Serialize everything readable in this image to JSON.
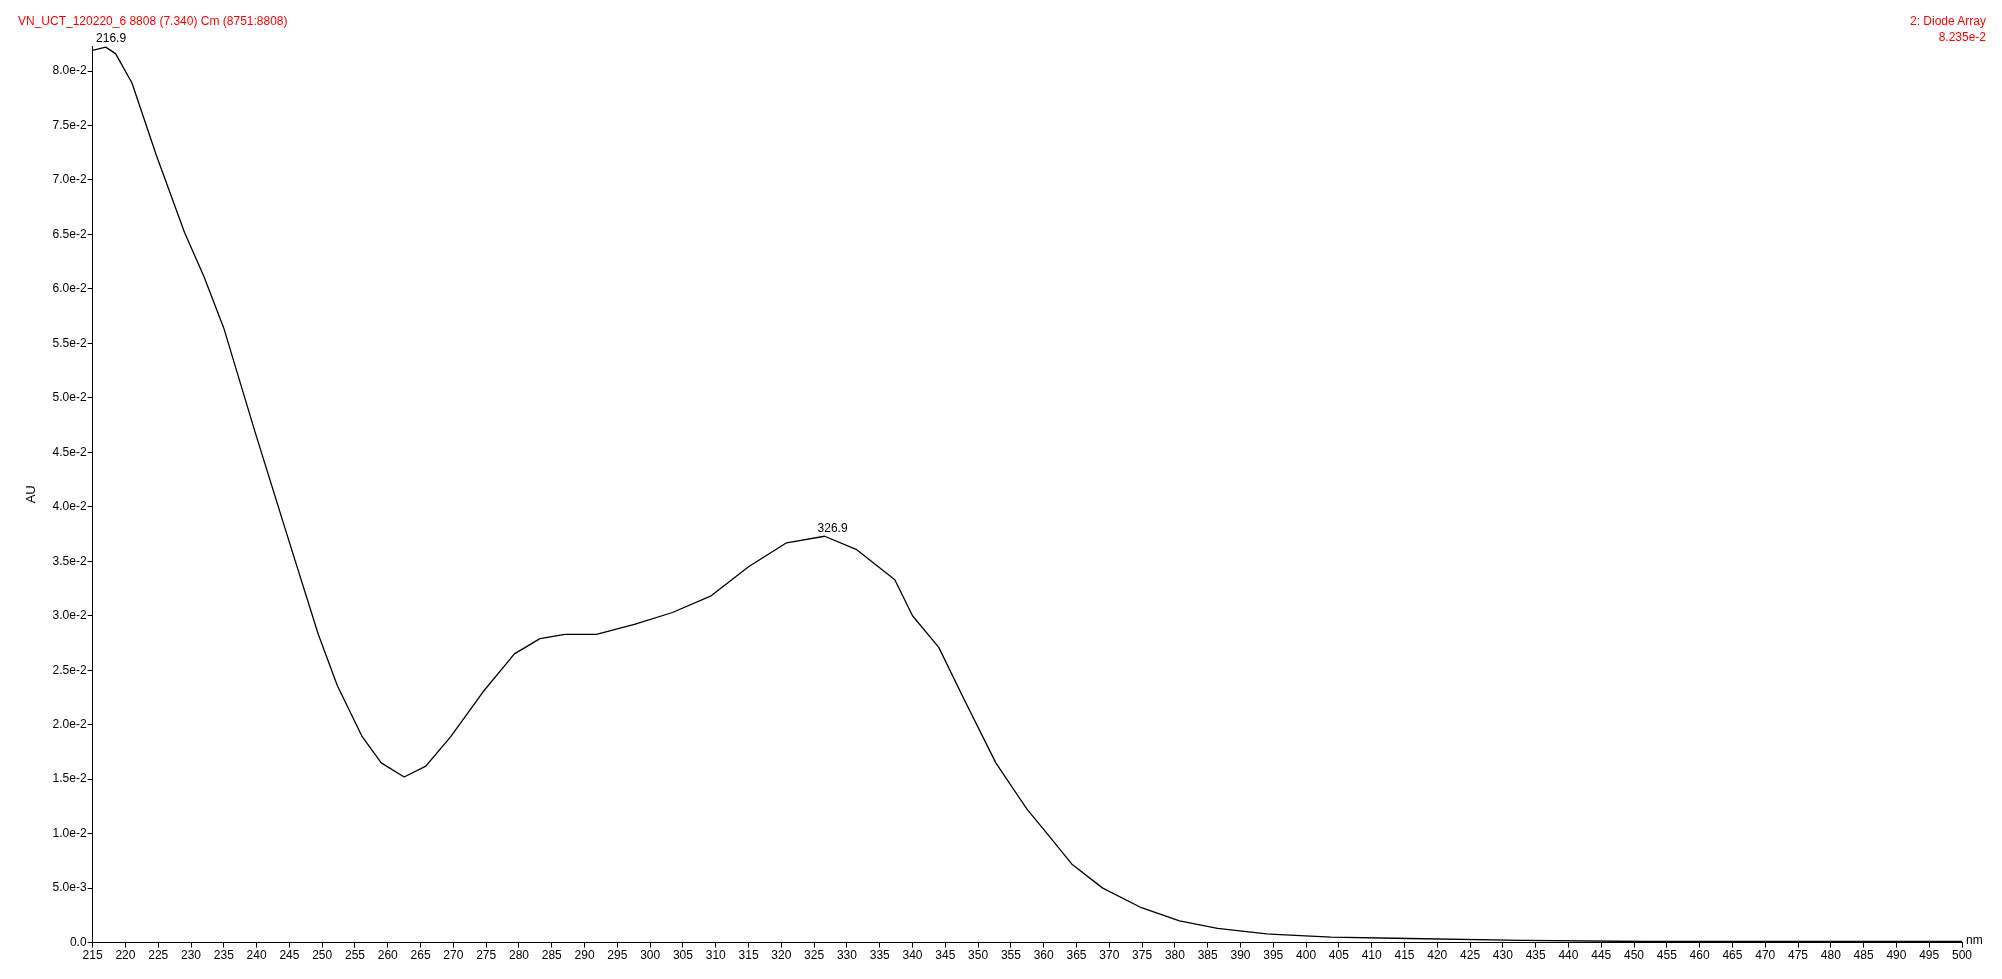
{
  "chart_data": {
    "type": "line",
    "title": "VN_UCT_120220_6 8808 (7.340) Cm (8751:8808)",
    "subtitle": "2: Diode Array",
    "xlabel": "nm",
    "ylabel": "AU",
    "x": [
      215,
      217,
      218.5,
      221,
      224.7,
      229,
      232,
      235,
      239.7,
      244.5,
      249.4,
      252.3,
      256.1,
      259,
      262.5,
      265.8,
      269.6,
      274.5,
      279.3,
      283.2,
      287,
      291.8,
      297.6,
      303.4,
      309.2,
      315,
      320.8,
      326.6,
      331.4,
      337.3,
      340,
      344,
      347.8,
      352.7,
      357.5,
      360.4,
      364.3,
      369,
      374.9,
      380.7,
      386.5,
      394,
      403.8,
      413.5,
      432.8,
      452,
      500
    ],
    "series": [
      {
        "color": "#000000",
        "values": [
          0.0819,
          0.0822,
          0.0816,
          0.0789,
          0.0723,
          0.0652,
          0.0611,
          0.0564,
          0.047,
          0.0377,
          0.0283,
          0.0236,
          0.0189,
          0.0165,
          0.0152,
          0.0162,
          0.0189,
          0.023,
          0.0265,
          0.0279,
          0.0283,
          0.0283,
          0.0292,
          0.0303,
          0.0318,
          0.0345,
          0.0367,
          0.0373,
          0.0361,
          0.0333,
          0.03,
          0.0271,
          0.0224,
          0.0165,
          0.0122,
          0.0101,
          0.0072,
          0.005,
          0.0032,
          0.002,
          0.0013,
          0.0008,
          0.0005,
          0.0004,
          0.0002,
          0.0001,
          0.0001
        ]
      }
    ],
    "xlim": [
      215,
      500
    ],
    "ylim": [
      0,
      0.0823
    ],
    "xticks": [
      215,
      220,
      225,
      230,
      235,
      240,
      245,
      250,
      255,
      260,
      265,
      270,
      275,
      280,
      285,
      290,
      295,
      300,
      305,
      310,
      315,
      320,
      325,
      330,
      335,
      340,
      345,
      350,
      355,
      360,
      365,
      370,
      375,
      380,
      385,
      390,
      395,
      400,
      405,
      410,
      415,
      420,
      425,
      430,
      435,
      440,
      445,
      450,
      455,
      460,
      465,
      470,
      475,
      480,
      485,
      490,
      495,
      500
    ],
    "yticks": [
      {
        "value": 0,
        "label": "0.0"
      },
      {
        "value": 0.005,
        "label": "5.0e-3"
      },
      {
        "value": 0.01,
        "label": "1.0e-2"
      },
      {
        "value": 0.015,
        "label": "1.5e-2"
      },
      {
        "value": 0.02,
        "label": "2.0e-2"
      },
      {
        "value": 0.025,
        "label": "2.5e-2"
      },
      {
        "value": 0.03,
        "label": "3.0e-2"
      },
      {
        "value": 0.035,
        "label": "3.5e-2"
      },
      {
        "value": 0.04,
        "label": "4.0e-2"
      },
      {
        "value": 0.045,
        "label": "4.5e-2"
      },
      {
        "value": 0.05,
        "label": "5.0e-2"
      },
      {
        "value": 0.055,
        "label": "5.5e-2"
      },
      {
        "value": 0.06,
        "label": "6.0e-2"
      },
      {
        "value": 0.065,
        "label": "6.5e-2"
      },
      {
        "value": 0.07,
        "label": "7.0e-2"
      },
      {
        "value": 0.075,
        "label": "7.5e-2"
      },
      {
        "value": 0.08,
        "label": "8.0e-2"
      }
    ],
    "annotations": [
      {
        "text": "216.9",
        "x": 216.9,
        "y": 0.0822
      },
      {
        "text": "326.9",
        "x": 326.9,
        "y": 0.0373
      },
      "8.235e-2"
    ],
    "grid": false,
    "legend": false,
    "marker": "none",
    "line_style": "solid"
  }
}
